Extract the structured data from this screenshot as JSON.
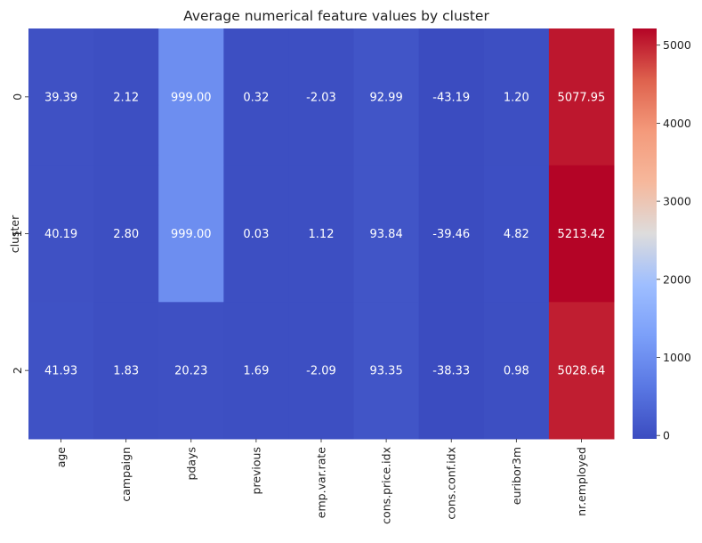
{
  "chart_data": {
    "type": "heatmap",
    "title": "Average numerical feature values by cluster",
    "xlabel": "",
    "ylabel": "cluster",
    "x_labels": [
      "age",
      "campaign",
      "pdays",
      "previous",
      "emp.var.rate",
      "cons.price.idx",
      "cons.conf.idx",
      "euribor3m",
      "nr.employed"
    ],
    "y_labels": [
      "0",
      "1",
      "2"
    ],
    "values": [
      [
        39.39,
        2.12,
        999.0,
        0.32,
        -2.03,
        92.99,
        -43.19,
        1.2,
        5077.95
      ],
      [
        40.19,
        2.8,
        999.0,
        0.03,
        1.12,
        93.84,
        -39.46,
        4.82,
        5213.42
      ],
      [
        41.93,
        1.83,
        20.23,
        1.69,
        -2.09,
        93.35,
        -38.33,
        0.98,
        5028.64
      ]
    ],
    "value_format": "2 decimals",
    "colormap": "coolwarm",
    "colorbar": {
      "range": [
        -43.19,
        5213.42
      ],
      "ticks": [
        0,
        1000,
        2000,
        3000,
        4000,
        5000
      ],
      "tick_labels": [
        "0",
        "1000",
        "2000",
        "3000",
        "4000",
        "5000"
      ]
    }
  }
}
